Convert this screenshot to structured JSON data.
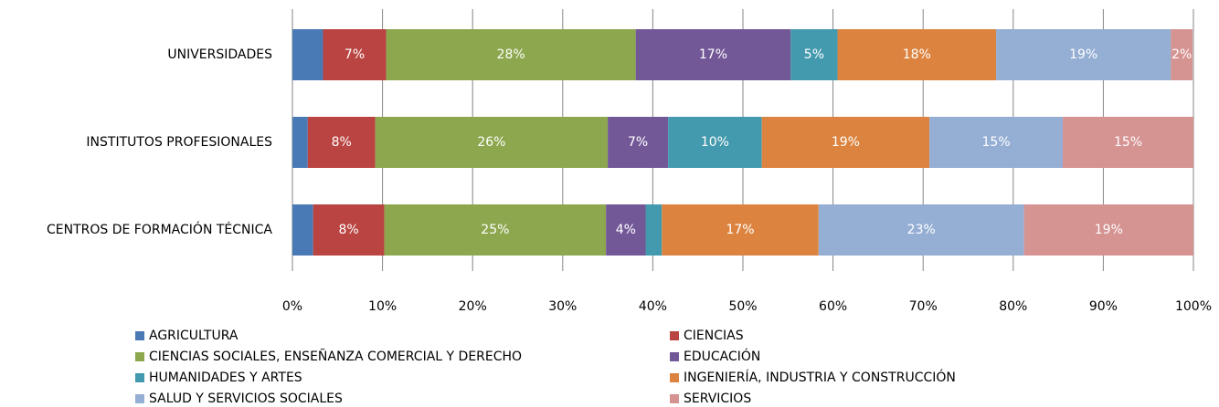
{
  "chart_data": {
    "type": "stacked-barh",
    "categories": [
      "UNIVERSIDADES",
      "INSTITUTOS  PROFESIONALES",
      "CENTROS DE FORMACIÓN TÉCNICA"
    ],
    "series": [
      {
        "name": "AGRICULTURA",
        "color": "#4a7ab5",
        "values": [
          3.4,
          1.7,
          2.3
        ],
        "value_labels": [
          null,
          null,
          null
        ]
      },
      {
        "name": "CIENCIAS",
        "color": "#b94441",
        "values": [
          7,
          7.5,
          7.9
        ],
        "value_labels": [
          "7%",
          "8%",
          "8%"
        ]
      },
      {
        "name": "CIENCIAS SOCIALES,  ENSEÑANZA  COMERCIAL Y DERECHO",
        "color": "#8ca74d",
        "values": [
          27.7,
          25.8,
          24.6
        ],
        "value_labels": [
          "28%",
          "26%",
          "25%"
        ]
      },
      {
        "name": "EDUCACIÓN",
        "color": "#735898",
        "values": [
          17.2,
          6.7,
          4.4
        ],
        "value_labels": [
          "17%",
          "7%",
          "4%"
        ]
      },
      {
        "name": "HUMANIDADES  Y ARTES",
        "color": "#4399ad",
        "values": [
          5.2,
          10.4,
          1.8
        ],
        "value_labels": [
          "5%",
          "10%",
          null
        ]
      },
      {
        "name": "INGENIERÍA,  INDUSTRIA  Y CONSTRUCCIÓN",
        "color": "#dc843f",
        "values": [
          17.6,
          18.6,
          17.4
        ],
        "value_labels": [
          "18%",
          "19%",
          "17%"
        ]
      },
      {
        "name": "SALUD Y SERVICIOS  SOCIALES",
        "color": "#95aed4",
        "values": [
          19.4,
          14.8,
          22.8
        ],
        "value_labels": [
          "19%",
          "15%",
          "23%"
        ]
      },
      {
        "name": "SERVICIOS",
        "color": "#d59392",
        "values": [
          2.4,
          14.5,
          18.8
        ],
        "value_labels": [
          "2%",
          "15%",
          "19%"
        ]
      }
    ],
    "xlim": [
      0,
      100
    ],
    "xticks": [
      {
        "value": 0,
        "label": "0%"
      },
      {
        "value": 10,
        "label": "10%"
      },
      {
        "value": 20,
        "label": "20%"
      },
      {
        "value": 30,
        "label": "30%"
      },
      {
        "value": 40,
        "label": "40%"
      },
      {
        "value": 50,
        "label": "50%"
      },
      {
        "value": 60,
        "label": "60%"
      },
      {
        "value": 70,
        "label": "70%"
      },
      {
        "value": 80,
        "label": "80%"
      },
      {
        "value": 90,
        "label": "90%"
      },
      {
        "value": 100,
        "label": "100%"
      }
    ],
    "grid": true,
    "legend": "bottom"
  }
}
